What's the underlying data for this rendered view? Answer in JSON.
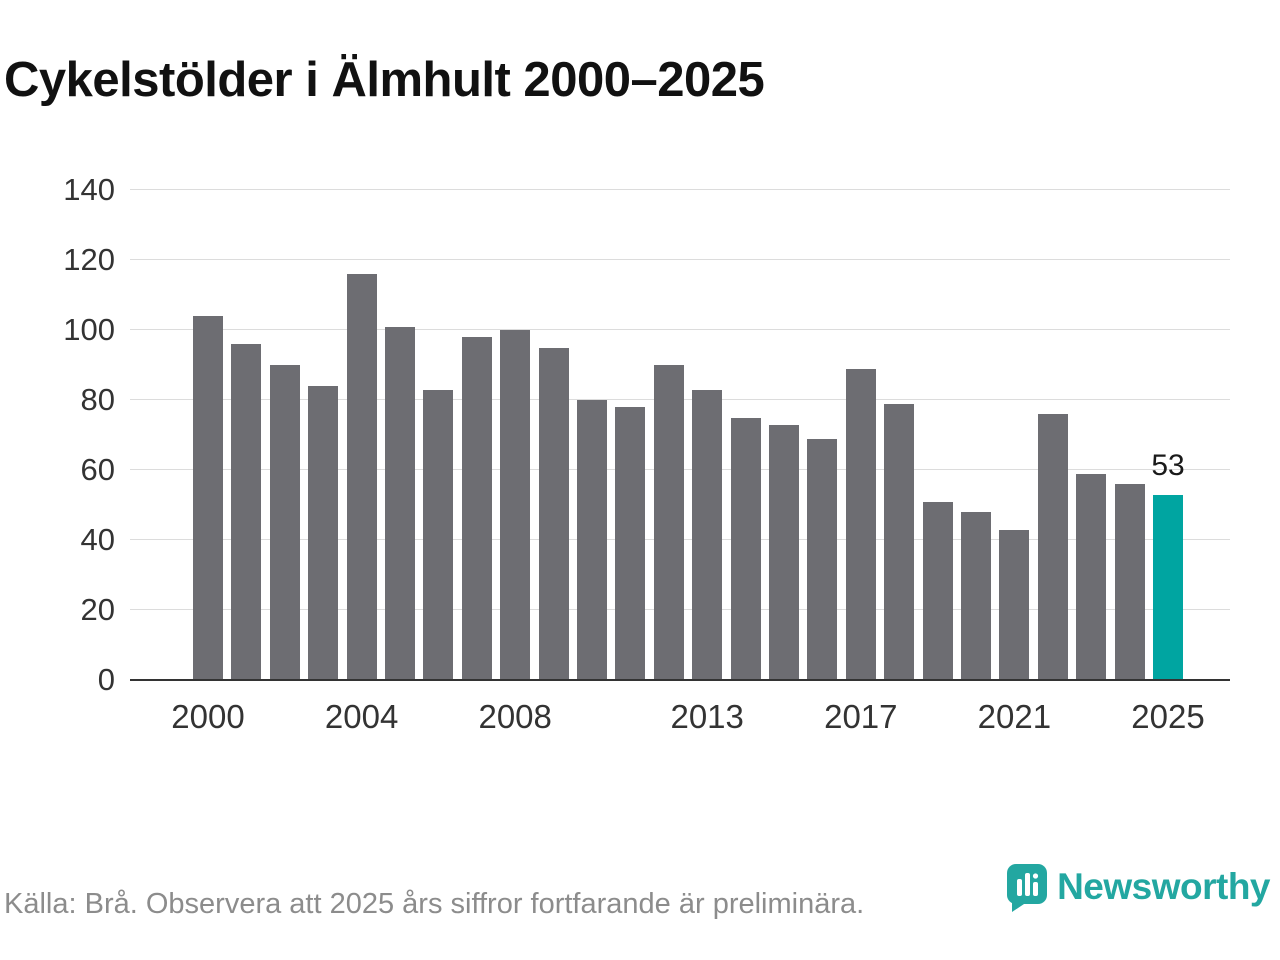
{
  "title": "Cykelstölder i Älmhult 2000–2025",
  "footer": {
    "source": "Källa: Brå. Observera att 2025 års siffror fortfarande är preliminära.",
    "brand": "Newsworthy"
  },
  "colors": {
    "bar": "#6d6d72",
    "highlight": "#00a5a1",
    "brand": "#23a7a1",
    "grid": "#dcdcdc",
    "axis": "#333333",
    "tick_text": "#333333",
    "muted_text": "#8c8c8c"
  },
  "chart_data": {
    "type": "bar",
    "title": "Cykelstölder i Älmhult 2000–2025",
    "x": [
      2000,
      2001,
      2002,
      2003,
      2004,
      2005,
      2006,
      2007,
      2008,
      2009,
      2010,
      2011,
      2012,
      2013,
      2014,
      2015,
      2016,
      2017,
      2018,
      2019,
      2020,
      2021,
      2022,
      2023,
      2024,
      2025
    ],
    "values": [
      104,
      96,
      90,
      84,
      116,
      101,
      83,
      98,
      100,
      95,
      80,
      78,
      90,
      83,
      75,
      73,
      69,
      89,
      79,
      51,
      48,
      43,
      76,
      59,
      56,
      53
    ],
    "highlight_index": 25,
    "highlight_label": "53",
    "xlabel": "",
    "ylabel": "",
    "ylim": [
      0,
      140
    ],
    "yticks": [
      0,
      20,
      40,
      60,
      80,
      100,
      120,
      140
    ],
    "xticks": [
      2000,
      2004,
      2008,
      2013,
      2017,
      2021,
      2025
    ],
    "grid": true,
    "legend": false
  }
}
